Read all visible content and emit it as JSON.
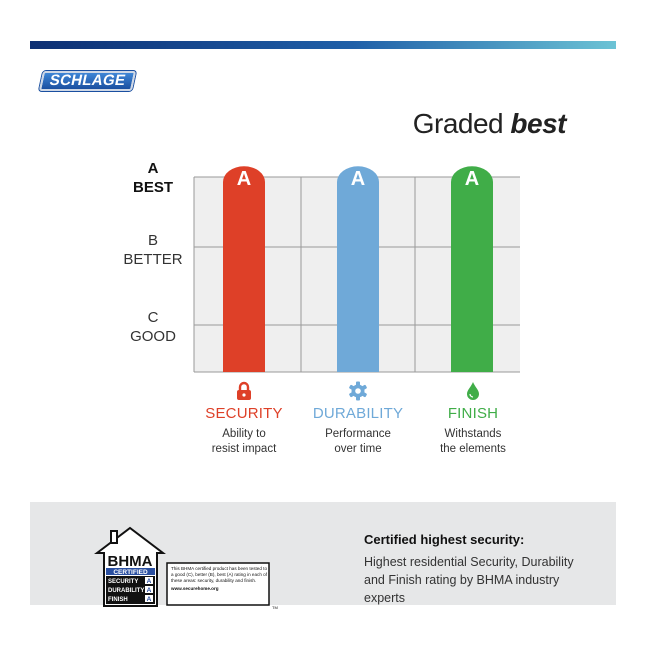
{
  "brand": {
    "logo_text": "SCHLAGE"
  },
  "title": {
    "regular": "Graded",
    "emphasis": "best"
  },
  "chart_data": {
    "type": "bar",
    "categories": [
      "SECURITY",
      "DURABILITY",
      "FINISH"
    ],
    "values": [
      "A",
      "A",
      "A"
    ],
    "y_levels": [
      {
        "grade": "A",
        "label": "BEST"
      },
      {
        "grade": "B",
        "label": "BETTER"
      },
      {
        "grade": "C",
        "label": "GOOD"
      }
    ],
    "colors": [
      "#de4028",
      "#6fa9d8",
      "#40ad48"
    ],
    "descriptions": [
      [
        "Ability to",
        "resist impact"
      ],
      [
        "Performance",
        "over time"
      ],
      [
        "Withstands",
        "the elements"
      ]
    ],
    "icons": [
      "lock-icon",
      "gear-icon",
      "drop-icon"
    ],
    "grid": true
  },
  "footer": {
    "badge": {
      "brand": "BHMA",
      "certified": "CERTIFIED",
      "rows": [
        {
          "label": "SECURITY",
          "grade": "A"
        },
        {
          "label": "DURABILITY",
          "grade": "A"
        },
        {
          "label": "FINISH",
          "grade": "A"
        }
      ],
      "text": "This BHMA certified product has been tested to a good (C), better (B), best (A) rating in each of these areas: security, durability and finish.",
      "url": "www.securehome.org",
      "tm": "TM"
    },
    "heading": "Certified highest security:",
    "body": "Highest residential Security, Durability and Finish rating by BHMA industry experts"
  }
}
